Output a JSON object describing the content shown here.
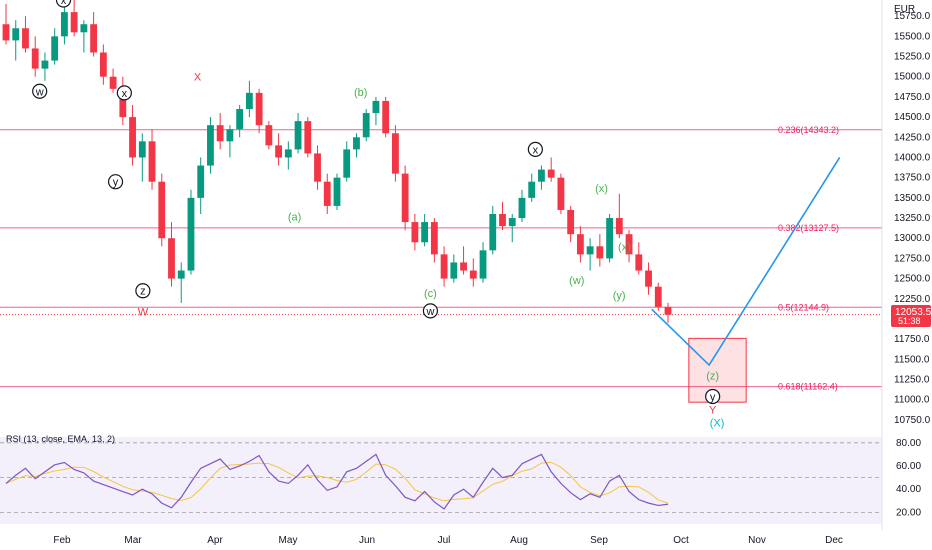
{
  "chart_data": {
    "type": "candlestick",
    "currency_label": "EUR",
    "price_ticks": [
      "15750.0",
      "15500.0",
      "15250.0",
      "15000.0",
      "14750.0",
      "14500.0",
      "14250.0",
      "14000.0",
      "13750.0",
      "13500.0",
      "13250.0",
      "13000.0",
      "12750.0",
      "12500.0",
      "12250.0",
      "12000.0",
      "11750.0",
      "11500.0",
      "11250.0",
      "11000.0",
      "10750.0"
    ],
    "price_range": [
      10650,
      15950
    ],
    "x_labels": [
      "Feb",
      "Mar",
      "Apr",
      "May",
      "Jun",
      "Jul",
      "Aug",
      "Sep",
      "Oct",
      "Nov",
      "Dec"
    ],
    "last_price": {
      "value": "12053.5",
      "countdown": "51:38",
      "color": "#f23645"
    },
    "fib_levels": [
      {
        "label": "0.236(14343.2)",
        "value": 14343.2
      },
      {
        "label": "0.382(13127.5)",
        "value": 13127.5
      },
      {
        "label": "0.5(12144.9)",
        "value": 12144.9
      },
      {
        "label": "0.618(11162.4)",
        "value": 11162.4
      }
    ],
    "candles_ohlc": [
      [
        15650,
        15900,
        15400,
        15450
      ],
      [
        15450,
        15700,
        15200,
        15600
      ],
      [
        15600,
        15750,
        15300,
        15350
      ],
      [
        15350,
        15500,
        15000,
        15100
      ],
      [
        15100,
        15300,
        14950,
        15200
      ],
      [
        15200,
        15600,
        15150,
        15500
      ],
      [
        15500,
        15900,
        15400,
        15800
      ],
      [
        15800,
        15950,
        15500,
        15550
      ],
      [
        15550,
        15700,
        15300,
        15650
      ],
      [
        15650,
        15800,
        15250,
        15300
      ],
      [
        15300,
        15400,
        14900,
        15000
      ],
      [
        15000,
        15100,
        14800,
        14850
      ],
      [
        14850,
        15000,
        14400,
        14500
      ],
      [
        14500,
        14650,
        13900,
        14000
      ],
      [
        14000,
        14300,
        13700,
        14200
      ],
      [
        14200,
        14350,
        13600,
        13700
      ],
      [
        13700,
        13800,
        12900,
        13000
      ],
      [
        13000,
        13200,
        12400,
        12500
      ],
      [
        12500,
        12700,
        12200,
        12600
      ],
      [
        12600,
        13600,
        12550,
        13500
      ],
      [
        13500,
        14000,
        13300,
        13900
      ],
      [
        13900,
        14500,
        13800,
        14400
      ],
      [
        14400,
        14550,
        14100,
        14200
      ],
      [
        14200,
        14400,
        14000,
        14350
      ],
      [
        14350,
        14650,
        14250,
        14600
      ],
      [
        14600,
        14950,
        14500,
        14800
      ],
      [
        14800,
        14850,
        14300,
        14400
      ],
      [
        14400,
        14450,
        14100,
        14150
      ],
      [
        14150,
        14300,
        13900,
        14000
      ],
      [
        14000,
        14200,
        13850,
        14100
      ],
      [
        14100,
        14550,
        14050,
        14450
      ],
      [
        14450,
        14500,
        14000,
        14050
      ],
      [
        14050,
        14150,
        13600,
        13700
      ],
      [
        13700,
        13800,
        13300,
        13400
      ],
      [
        13400,
        13800,
        13350,
        13750
      ],
      [
        13750,
        14200,
        13700,
        14100
      ],
      [
        14100,
        14300,
        14000,
        14250
      ],
      [
        14250,
        14600,
        14200,
        14550
      ],
      [
        14550,
        14750,
        14400,
        14700
      ],
      [
        14700,
        14750,
        14250,
        14300
      ],
      [
        14300,
        14400,
        13700,
        13800
      ],
      [
        13800,
        13900,
        13100,
        13200
      ],
      [
        13200,
        13300,
        12850,
        12950
      ],
      [
        12950,
        13300,
        12900,
        13200
      ],
      [
        13200,
        13250,
        12700,
        12800
      ],
      [
        12800,
        12900,
        12400,
        12500
      ],
      [
        12500,
        12800,
        12450,
        12700
      ],
      [
        12700,
        12900,
        12550,
        12600
      ],
      [
        12600,
        12750,
        12400,
        12500
      ],
      [
        12500,
        12950,
        12450,
        12850
      ],
      [
        12850,
        13400,
        12800,
        13300
      ],
      [
        13300,
        13450,
        13100,
        13150
      ],
      [
        13150,
        13300,
        12950,
        13250
      ],
      [
        13250,
        13600,
        13200,
        13500
      ],
      [
        13500,
        13800,
        13450,
        13700
      ],
      [
        13700,
        13900,
        13600,
        13850
      ],
      [
        13850,
        14000,
        13700,
        13750
      ],
      [
        13750,
        13800,
        13300,
        13350
      ],
      [
        13350,
        13400,
        12950,
        13050
      ],
      [
        13050,
        13150,
        12700,
        12800
      ],
      [
        12800,
        13000,
        12600,
        12900
      ],
      [
        12900,
        13050,
        12650,
        12750
      ],
      [
        12750,
        13300,
        12700,
        13250
      ],
      [
        13250,
        13550,
        13000,
        13050
      ],
      [
        13050,
        13100,
        12700,
        12800
      ],
      [
        12800,
        12950,
        12550,
        12600
      ],
      [
        12600,
        12700,
        12300,
        12400
      ],
      [
        12400,
        12450,
        12100,
        12150
      ],
      [
        12150,
        12200,
        11950,
        12053.5
      ]
    ],
    "waves": [
      {
        "label": "x",
        "circled": true,
        "color": "#131722",
        "x": 0.072,
        "price": 15950
      },
      {
        "label": "w",
        "circled": true,
        "color": "#131722",
        "x": 0.045,
        "price": 14820
      },
      {
        "label": "x",
        "circled": true,
        "color": "#131722",
        "x": 0.141,
        "price": 14800
      },
      {
        "label": "y",
        "circled": true,
        "color": "#131722",
        "x": 0.131,
        "price": 13700
      },
      {
        "label": "z",
        "circled": true,
        "color": "#131722",
        "x": 0.162,
        "price": 12350
      },
      {
        "label": "W",
        "circled": false,
        "color": "#f23645",
        "x": 0.162,
        "price": 12090
      },
      {
        "label": "X",
        "circled": false,
        "color": "#f23645",
        "x": 0.224,
        "price": 15000
      },
      {
        "label": "(b)",
        "circled": false,
        "color": "#4caf50",
        "x": 0.409,
        "price": 14810
      },
      {
        "label": "(a)",
        "circled": false,
        "color": "#4caf50",
        "x": 0.334,
        "price": 13270
      },
      {
        "label": "(c)",
        "circled": false,
        "color": "#4caf50",
        "x": 0.488,
        "price": 12320
      },
      {
        "label": "w",
        "circled": true,
        "color": "#131722",
        "x": 0.488,
        "price": 12100
      },
      {
        "label": "x",
        "circled": true,
        "color": "#131722",
        "x": 0.607,
        "price": 14100
      },
      {
        "label": "(x)",
        "circled": false,
        "color": "#4caf50",
        "x": 0.682,
        "price": 13620
      },
      {
        "label": "(w)",
        "circled": false,
        "color": "#4caf50",
        "x": 0.654,
        "price": 12480
      },
      {
        "label": "(x)",
        "circled": false,
        "color": "#4caf50",
        "x": 0.708,
        "price": 12900
      },
      {
        "label": "(y)",
        "circled": false,
        "color": "#4caf50",
        "x": 0.702,
        "price": 12300
      },
      {
        "label": "(z)",
        "circled": false,
        "color": "#4caf50",
        "x": 0.808,
        "price": 11300
      },
      {
        "label": "y",
        "circled": true,
        "color": "#131722",
        "x": 0.808,
        "price": 11040
      },
      {
        "label": "Y",
        "circled": false,
        "color": "#f23645",
        "x": 0.808,
        "price": 10880
      },
      {
        "label": "(X)",
        "circled": false,
        "color": "#00bcd4",
        "x": 0.813,
        "price": 10720
      }
    ],
    "projection": [
      {
        "x": 0.739,
        "price": 12120
      },
      {
        "x": 0.804,
        "price": 11430
      },
      {
        "x": 0.952,
        "price": 14000
      }
    ],
    "target_zone": {
      "x_start": 0.781,
      "x_end": 0.846,
      "price_low": 10970,
      "price_high": 11760
    },
    "rsi": {
      "title": "RSI (13, close, EMA, 13, 2)",
      "range": [
        10,
        85
      ],
      "ticks": [
        "80.00",
        "60.00",
        "40.00",
        "20.00"
      ],
      "bands": [
        80,
        50,
        20
      ],
      "values": [
        45,
        52,
        58,
        49,
        55,
        61,
        63,
        57,
        54,
        47,
        44,
        41,
        38,
        35,
        40,
        36,
        28,
        24,
        33,
        46,
        58,
        62,
        66,
        57,
        60,
        64,
        69,
        55,
        47,
        45,
        52,
        61,
        48,
        39,
        42,
        55,
        58,
        64,
        70,
        52,
        43,
        33,
        30,
        38,
        29,
        23,
        35,
        40,
        33,
        46,
        58,
        50,
        52,
        62,
        66,
        70,
        55,
        45,
        37,
        31,
        36,
        33,
        47,
        52,
        38,
        31,
        28,
        26,
        27
      ],
      "line_color": "#7e57c2",
      "signal_color": "#f5c542"
    }
  }
}
